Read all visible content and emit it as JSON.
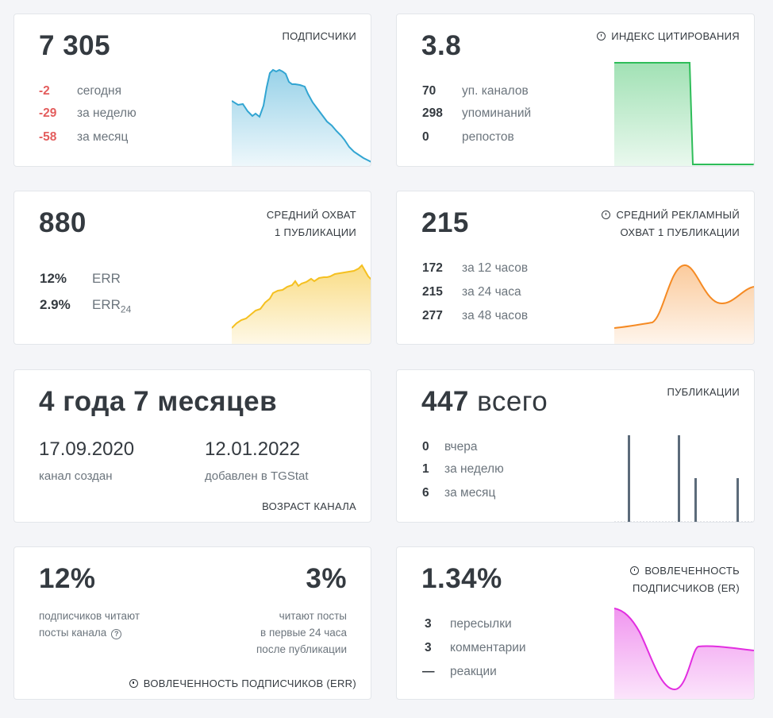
{
  "subscribers": {
    "value": "7 305",
    "label": "ПОДПИСЧИКИ",
    "rows": [
      {
        "n": "-2",
        "t": "сегодня"
      },
      {
        "n": "-29",
        "t": "за неделю"
      },
      {
        "n": "-58",
        "t": "за месяц"
      }
    ],
    "color": "#32a5d2"
  },
  "citation": {
    "value": "3.8",
    "label": "ИНДЕКС ЦИТИРОВАНИЯ",
    "rows": [
      {
        "n": "70",
        "t": "уп. каналов"
      },
      {
        "n": "298",
        "t": "упоминаний"
      },
      {
        "n": "0",
        "t": "репостов"
      }
    ],
    "color": "#2ebd59"
  },
  "reach": {
    "value": "880",
    "label_line1": "СРЕДНИЙ ОХВАТ",
    "label_line2": "1 ПУБЛИКАЦИИ",
    "err_value": "12%",
    "err_label": "ERR",
    "err24_value": "2.9%",
    "err24_label": "ERR",
    "err24_sub": "24",
    "color": "#f5c020"
  },
  "ad_reach": {
    "value": "215",
    "label_line1": "СРЕДНИЙ РЕКЛАМНЫЙ",
    "label_line2": "ОХВАТ 1 ПУБЛИКАЦИИ",
    "rows": [
      {
        "n": "172",
        "t": "за 12 часов"
      },
      {
        "n": "215",
        "t": "за 24 часа"
      },
      {
        "n": "277",
        "t": "за 48 часов"
      }
    ],
    "color": "#f58a23"
  },
  "age": {
    "value": "4 года 7 месяцев",
    "created_date": "17.09.2020",
    "created_label": "канал создан",
    "added_date": "12.01.2022",
    "added_label": "добавлен в TGStat",
    "label": "ВОЗРАСТ КАНАЛА"
  },
  "posts": {
    "value": "447",
    "unit": "всего",
    "label": "ПУБЛИКАЦИИ",
    "rows": [
      {
        "n": "0",
        "t": "вчера"
      },
      {
        "n": "1",
        "t": "за неделю"
      },
      {
        "n": "6",
        "t": "за месяц"
      }
    ],
    "color": "#5c6b7a"
  },
  "err_card": {
    "left_value": "12%",
    "left_text_line1": "подписчиков читают",
    "left_text_line2": "посты канала",
    "right_value": "3%",
    "right_text_line1": "читают посты",
    "right_text_line2": "в первые 24 часа",
    "right_text_line3": "после публикации",
    "label": "ВОВЛЕЧЕННОСТЬ ПОДПИСЧИКОВ (ERR)"
  },
  "er_card": {
    "value": "1.34%",
    "label_line1": "ВОВЛЕЧЕННОСТЬ",
    "label_line2": "ПОДПИСЧИКОВ (ER)",
    "rows": [
      {
        "n": "3",
        "t": "пересылки"
      },
      {
        "n": "3",
        "t": "комментарии"
      },
      {
        "n": "—",
        "t": "реакции"
      }
    ],
    "color": "#e22ee0"
  }
}
